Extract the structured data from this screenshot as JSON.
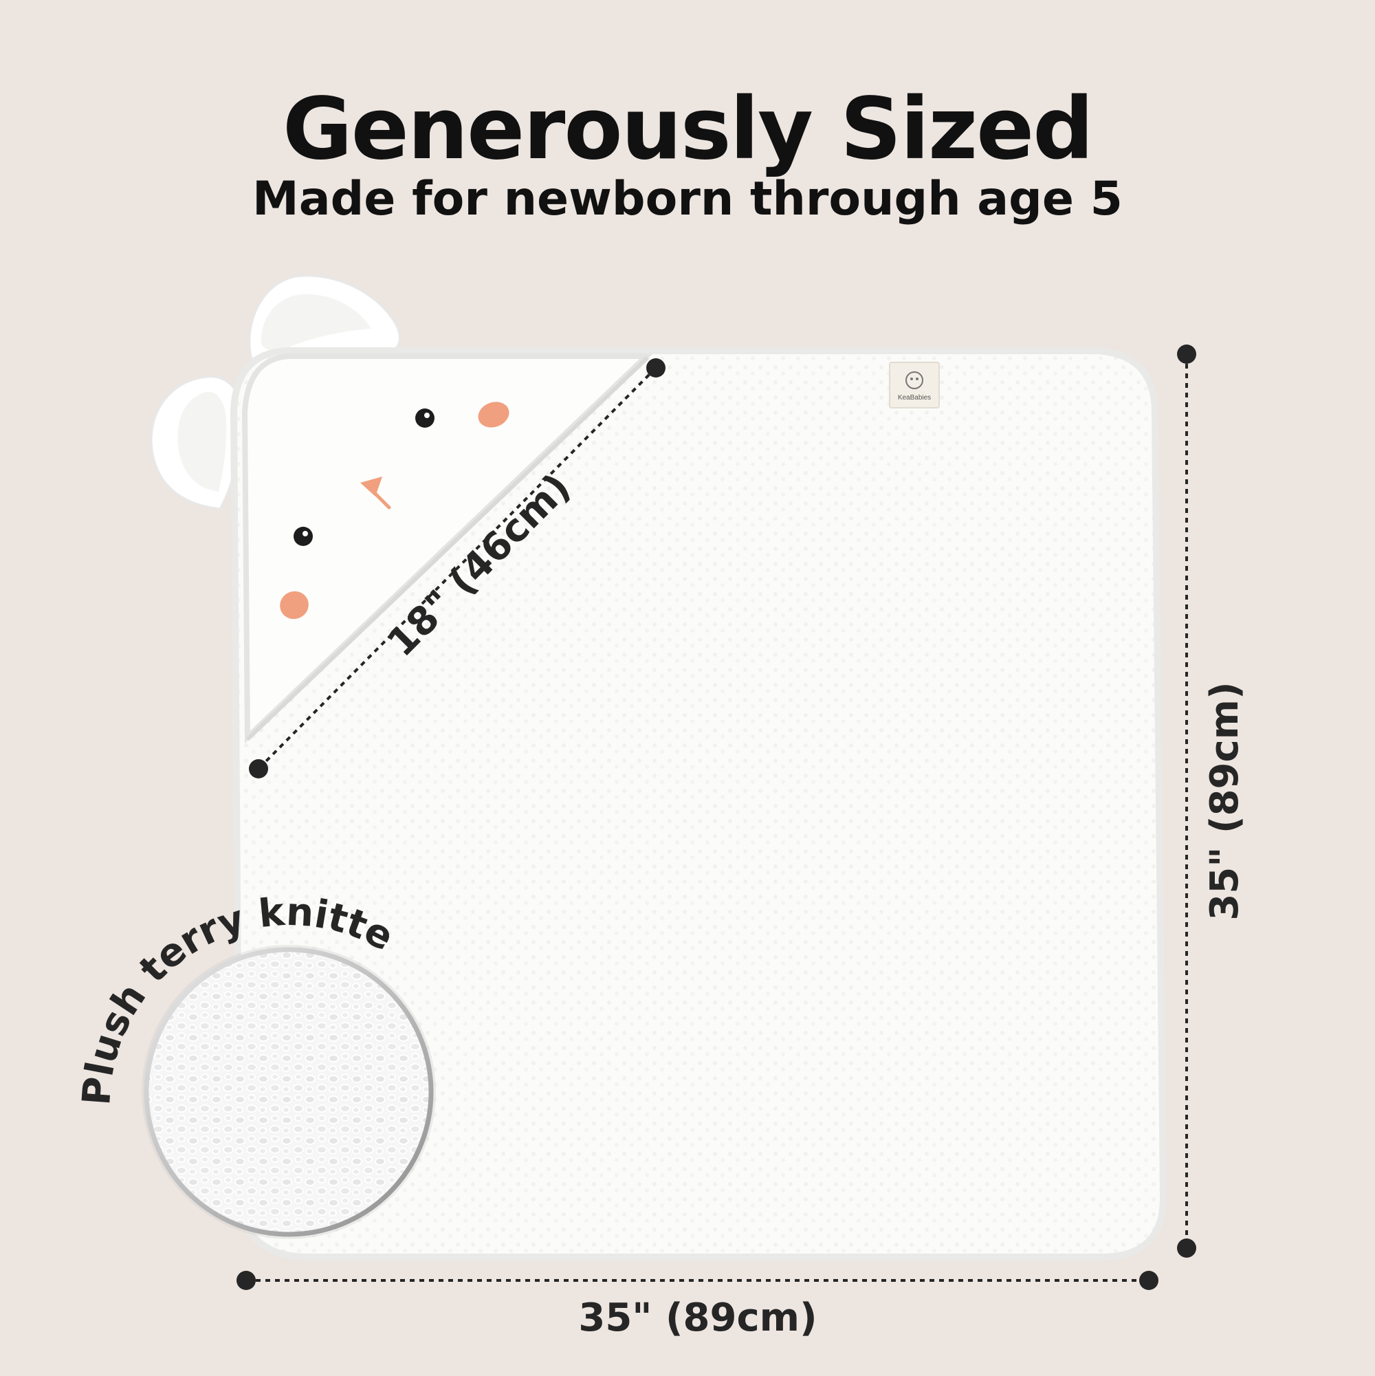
{
  "header": {
    "title": "Generously Sized",
    "subtitle": "Made for newborn through age 5"
  },
  "product": {
    "brand_tag": "KeaBabies",
    "colors": {
      "background": "#ede5e0",
      "towel": "#fbfbf9",
      "towel_edge": "#eeeeec",
      "cheek": "#f0a07e",
      "dimension_lines": "#262626"
    }
  },
  "dimensions": {
    "hood": "18\" (46cm)",
    "height": "35\" (89cm)",
    "width": "35\" (89cm)"
  },
  "callout": {
    "label": "Plush terry knitted",
    "icon": "terry-texture-zoom-icon"
  }
}
